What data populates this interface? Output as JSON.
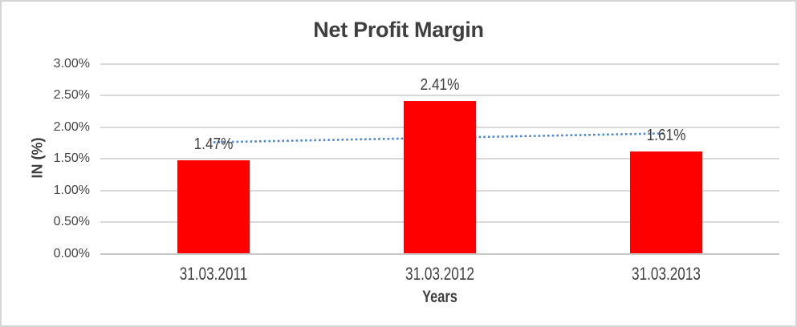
{
  "chart": {
    "title": "Net Profit Margin",
    "y_axis_title": "IN (%)",
    "x_axis_title": "Years"
  },
  "chart_data": {
    "type": "bar",
    "title": "Net Profit Margin",
    "categories": [
      "31.03.2011",
      "31.03.2012",
      "31.03.2013"
    ],
    "values": [
      1.47,
      2.41,
      1.61
    ],
    "data_labels": [
      "1.47%",
      "2.41%",
      "1.61%"
    ],
    "xlabel": "Years",
    "ylabel": "IN (%)",
    "ylim": [
      0,
      3
    ],
    "ytick_step": 0.5,
    "ytick_labels": [
      "0.00%",
      "0.50%",
      "1.00%",
      "1.50%",
      "2.00%",
      "2.50%",
      "3.00%"
    ],
    "grid": true,
    "legend": false,
    "trendline": {
      "type": "linear",
      "style": "dotted"
    }
  },
  "colors": {
    "bar": "#FF0000",
    "trendline": "#4E86C8",
    "gridline": "#D9D9D9",
    "axis_line": "#C8C8C8",
    "text": "#3F3F3F",
    "border": "#D6D6D6",
    "background": "#FFFFFF"
  }
}
